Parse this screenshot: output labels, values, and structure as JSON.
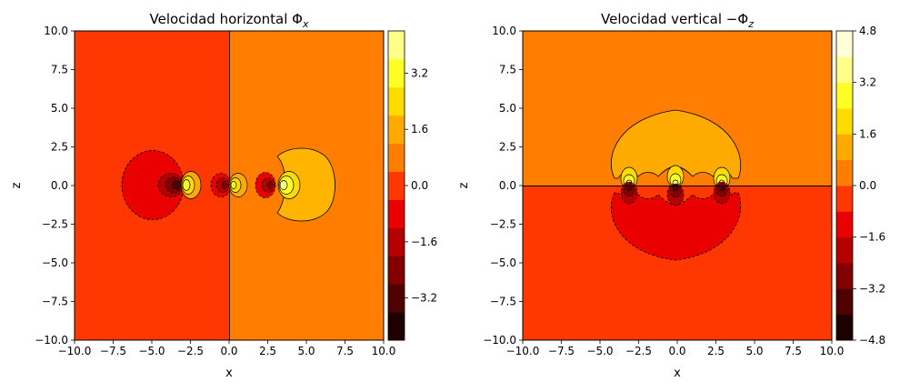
{
  "chart_data": [
    {
      "type": "heatmap",
      "subtype": "filled-contour",
      "title_text": "Velocidad horizontal Φ",
      "title_subscript": "x",
      "xlabel": "x",
      "ylabel": "z",
      "xlim": [
        -10,
        10
      ],
      "ylim": [
        -10,
        10
      ],
      "xticks": [
        "−10.0",
        "−7.5",
        "−5.0",
        "−2.5",
        "0.0",
        "2.5",
        "5.0",
        "7.5",
        "10.0"
      ],
      "yticks": [
        "10.0",
        "7.5",
        "5.0",
        "2.5",
        "0.0",
        "−2.5",
        "−5.0",
        "−7.5",
        "−10.0"
      ],
      "background_left_value": -0.4,
      "background_right_value": 0.4,
      "features": [
        {
          "kind": "lobe",
          "x": -4.6,
          "z": 0.0,
          "rx": 2.0,
          "rz": 2.2,
          "value": -0.8
        },
        {
          "kind": "lobe",
          "x": 4.9,
          "z": 0.0,
          "rx": 2.0,
          "rz": 2.3,
          "value": 1.2
        },
        {
          "kind": "spot",
          "x": -3.8,
          "z": 0.0,
          "value": -2.0
        },
        {
          "kind": "spot",
          "x": -2.6,
          "z": 0.0,
          "value": 2.0
        },
        {
          "kind": "spot",
          "x": -0.5,
          "z": 0.0,
          "value": -2.0
        },
        {
          "kind": "spot",
          "x": 0.6,
          "z": 0.0,
          "value": 2.0
        },
        {
          "kind": "spot",
          "x": 2.3,
          "z": 0.0,
          "value": -1.6
        },
        {
          "kind": "spot",
          "x": 3.6,
          "z": 0.0,
          "value": 2.4
        }
      ],
      "colorbar": {
        "min": -4.4,
        "max": 4.4,
        "levels": [
          -4.4,
          -3.6,
          -2.8,
          -2.0,
          -1.2,
          -0.4,
          0.4,
          1.2,
          2.0,
          2.8,
          3.6,
          4.4
        ],
        "colors": [
          "#1e0000",
          "#4f0000",
          "#830000",
          "#b50000",
          "#ea0000",
          "#ff3700",
          "#ff7d00",
          "#ffaa00",
          "#ffdb00",
          "#ffff26",
          "#ffff8a"
        ],
        "ticks": [
          -3.2,
          -1.6,
          0.0,
          1.6,
          3.2
        ],
        "tick_labels": [
          "−3.2",
          "−1.6",
          "0.0",
          "1.6",
          "3.2"
        ]
      }
    },
    {
      "type": "heatmap",
      "subtype": "filled-contour",
      "title_text": "Velocidad vertical −Φ",
      "title_subscript": "z",
      "xlabel": "x",
      "ylabel": "z",
      "xlim": [
        -10,
        10
      ],
      "ylim": [
        -10,
        10
      ],
      "xticks": [
        "−10.0",
        "−7.5",
        "−5.0",
        "−2.5",
        "0.0",
        "2.5",
        "5.0",
        "7.5",
        "10.0"
      ],
      "yticks": [
        "10.0",
        "7.5",
        "5.0",
        "2.5",
        "0.0",
        "−2.5",
        "−5.0",
        "−7.5",
        "−10.0"
      ],
      "background_top_value": 0.4,
      "background_bottom_value": -0.4,
      "features": [
        {
          "kind": "dome",
          "x": 0.0,
          "z": 0.0,
          "rx": 4.1,
          "rz": 4.9,
          "value": 1.2
        },
        {
          "kind": "bowl",
          "x": 0.0,
          "z": 0.0,
          "rx": 4.1,
          "rz": 4.9,
          "value": -1.2
        },
        {
          "kind": "spot_up",
          "x": -3.0,
          "z": 0.0,
          "value": 3.2
        },
        {
          "kind": "spot_up",
          "x": 0.0,
          "z": 0.0,
          "value": 3.2
        },
        {
          "kind": "spot_up",
          "x": 2.9,
          "z": 0.0,
          "value": 3.2
        },
        {
          "kind": "spot_down",
          "x": -3.0,
          "z": 0.0,
          "value": -3.2
        },
        {
          "kind": "spot_down",
          "x": 0.0,
          "z": 0.0,
          "value": -3.2
        },
        {
          "kind": "spot_down",
          "x": 2.9,
          "z": 0.0,
          "value": -3.2
        }
      ],
      "colorbar": {
        "min": -4.8,
        "max": 4.8,
        "levels": [
          -4.8,
          -4.0,
          -3.2,
          -2.4,
          -1.6,
          -0.8,
          0.0,
          0.8,
          1.6,
          2.4,
          3.2,
          4.0,
          4.8
        ],
        "colors": [
          "#1e0000",
          "#4f0000",
          "#830000",
          "#b50000",
          "#ea0000",
          "#ff3700",
          "#ff7d00",
          "#ffaa00",
          "#ffdb00",
          "#ffff26",
          "#ffff8a",
          "#ffffd8"
        ],
        "ticks": [
          -4.8,
          -3.2,
          -1.6,
          0.0,
          1.6,
          3.2,
          4.8
        ],
        "tick_labels": [
          "−4.8",
          "−3.2",
          "−1.6",
          "0.0",
          "1.6",
          "3.2",
          "4.8"
        ]
      }
    }
  ]
}
